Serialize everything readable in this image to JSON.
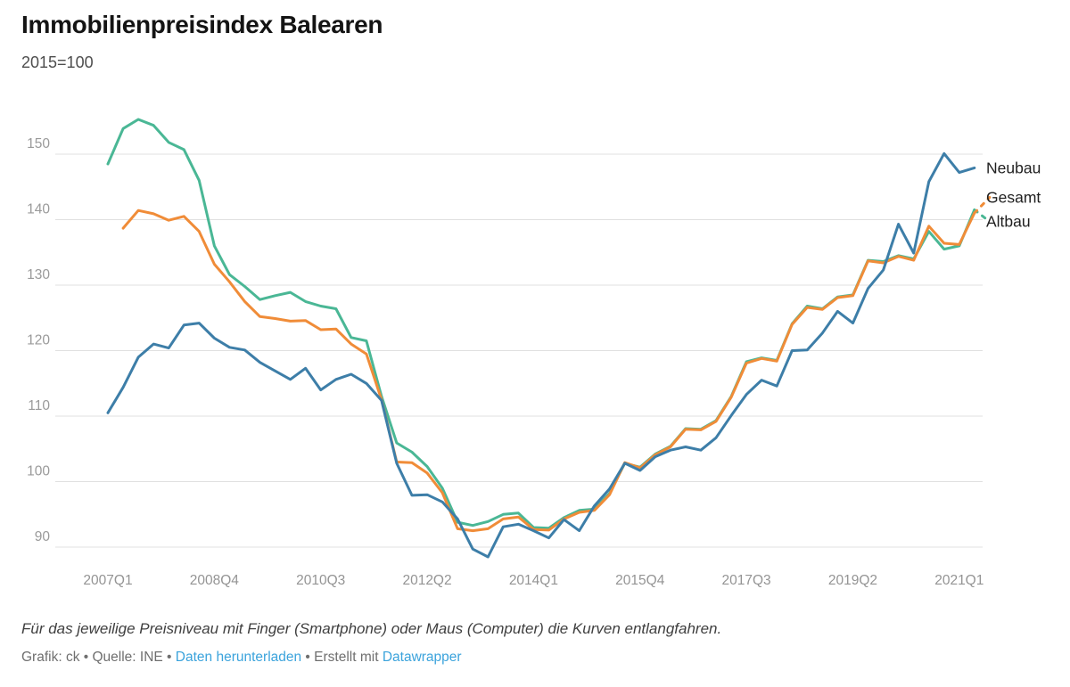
{
  "header": {
    "title": "Immobilienpreisindex Balearen",
    "subtitle": "2015=100"
  },
  "chart_data": {
    "type": "line",
    "title": "Immobilienpreisindex Balearen",
    "subtitle": "2015=100",
    "xlabel": "",
    "ylabel": "",
    "ylim": [
      86,
      157
    ],
    "y_ticks": [
      150,
      140,
      130,
      120,
      110,
      100,
      90
    ],
    "grid": "horizontal",
    "legend_position": "right-of-line-ends",
    "categories": [
      "2007Q1",
      "2007Q2",
      "2007Q3",
      "2007Q4",
      "2008Q1",
      "2008Q2",
      "2008Q3",
      "2008Q4",
      "2009Q1",
      "2009Q2",
      "2009Q3",
      "2009Q4",
      "2010Q1",
      "2010Q2",
      "2010Q3",
      "2010Q4",
      "2011Q1",
      "2011Q2",
      "2011Q3",
      "2011Q4",
      "2012Q1",
      "2012Q2",
      "2012Q3",
      "2012Q4",
      "2013Q1",
      "2013Q2",
      "2013Q3",
      "2013Q4",
      "2014Q1",
      "2014Q2",
      "2014Q3",
      "2014Q4",
      "2015Q1",
      "2015Q2",
      "2015Q3",
      "2015Q4",
      "2016Q1",
      "2016Q2",
      "2016Q3",
      "2016Q4",
      "2017Q1",
      "2017Q2",
      "2017Q3",
      "2017Q4",
      "2018Q1",
      "2018Q2",
      "2018Q3",
      "2018Q4",
      "2019Q1",
      "2019Q2",
      "2019Q3",
      "2019Q4",
      "2020Q1",
      "2020Q2",
      "2020Q3",
      "2020Q4",
      "2021Q1",
      "2021Q2",
      "2021Q3"
    ],
    "x_tick_indices": [
      0,
      7,
      14,
      21,
      28,
      35,
      42,
      49,
      56
    ],
    "series": [
      {
        "name": "Altbau",
        "color": "#4ab795",
        "dashed_from_index": 57,
        "values": [
          148.5,
          153.9,
          155.3,
          154.4,
          151.8,
          150.7,
          146.0,
          136.0,
          131.6,
          129.8,
          127.8,
          128.4,
          128.9,
          127.5,
          126.8,
          126.4,
          122.0,
          121.5,
          113.0,
          105.9,
          104.5,
          102.3,
          99.0,
          93.8,
          93.3,
          93.9,
          95.0,
          95.2,
          93.0,
          92.9,
          94.5,
          95.6,
          95.8,
          98.2,
          102.8,
          102.2,
          104.2,
          105.4,
          108.1,
          108.0,
          109.3,
          113.0,
          118.3,
          118.9,
          118.5,
          124.1,
          126.8,
          126.4,
          128.2,
          128.5,
          133.8,
          133.6,
          134.5,
          134.0,
          138.2,
          135.5,
          136.0,
          141.5,
          139.7
        ]
      },
      {
        "name": "Gesamt",
        "color": "#f08c38",
        "dashed_from_index": 57,
        "values": [
          null,
          138.7,
          141.4,
          140.9,
          139.9,
          140.5,
          138.2,
          133.2,
          130.5,
          127.5,
          125.2,
          124.9,
          124.5,
          124.6,
          123.2,
          123.3,
          121.0,
          119.5,
          112.5,
          103.0,
          102.9,
          101.3,
          98.3,
          92.8,
          92.5,
          92.8,
          94.3,
          94.6,
          92.7,
          92.6,
          94.3,
          95.3,
          95.6,
          98.0,
          102.9,
          102.1,
          104.1,
          105.3,
          108.0,
          107.9,
          109.2,
          112.9,
          118.1,
          118.8,
          118.4,
          124.0,
          126.6,
          126.3,
          128.1,
          128.4,
          133.7,
          133.4,
          134.4,
          133.8,
          139.0,
          136.4,
          136.2,
          141.0,
          143.4
        ]
      },
      {
        "name": "Neubau",
        "color": "#3d7ea8",
        "dashed_from_index": null,
        "values": [
          110.5,
          114.4,
          119.0,
          121.0,
          120.4,
          123.9,
          124.2,
          121.9,
          120.5,
          120.1,
          118.2,
          116.9,
          115.6,
          117.3,
          114.0,
          115.6,
          116.4,
          115.0,
          112.4,
          102.8,
          97.9,
          98.0,
          96.9,
          94.3,
          89.7,
          88.5,
          93.1,
          93.5,
          92.5,
          91.4,
          94.2,
          92.5,
          96.3,
          98.9,
          102.8,
          101.7,
          103.8,
          104.8,
          105.3,
          104.8,
          106.7,
          110.1,
          113.3,
          115.5,
          114.6,
          120.0,
          120.1,
          122.7,
          126.0,
          124.2,
          129.5,
          132.3,
          139.3,
          134.9,
          145.8,
          150.1,
          147.2,
          147.9,
          null
        ]
      }
    ]
  },
  "footer": {
    "note": "Für das jeweilige Preisniveau mit Finger (Smartphone) oder Maus (Computer) die Kurven entlangfahren.",
    "credit_prefix": "Grafik: ck • Quelle: INE • ",
    "download_link": "Daten herunterladen",
    "separator": " • ",
    "made_with": "Erstellt mit ",
    "datawrapper_link": "Datawrapper",
    "link_color": "#3ba3dc"
  }
}
